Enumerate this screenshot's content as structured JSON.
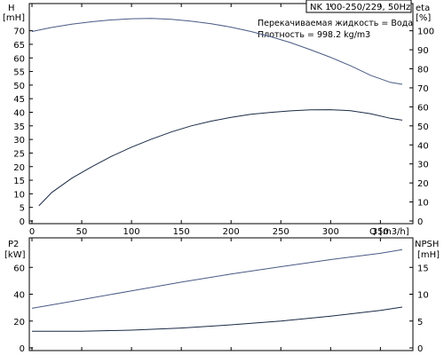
{
  "chart_data": [
    {
      "type": "line",
      "title": "NK 100-250/229, 50Hz",
      "info": [
        "Перекачиваемая жидкость = Вода",
        "Плотность = 998.2 kg/m3"
      ],
      "xlabel": "Q  [m3/h]",
      "xlim": [
        0,
        380
      ],
      "xticks": [
        0,
        50,
        100,
        150,
        200,
        250,
        300,
        350
      ],
      "left_axis": {
        "label_top": "H",
        "label_unit": "[mH]",
        "ylim": [
          0,
          80
        ],
        "ticks": [
          0,
          5,
          10,
          15,
          20,
          25,
          30,
          35,
          40,
          45,
          50,
          55,
          60,
          65,
          70
        ]
      },
      "right_axis": {
        "label_top": "eta",
        "label_unit": "[%]",
        "ylim": [
          0,
          114.3
        ],
        "ticks": [
          0,
          10,
          20,
          30,
          40,
          50,
          60,
          70,
          80,
          90,
          100
        ]
      },
      "grid": false,
      "series": [
        {
          "axis": "left",
          "color": "#4a5a85",
          "x": [
            0,
            20,
            40,
            60,
            80,
            100,
            120,
            140,
            160,
            180,
            200,
            220,
            240,
            260,
            280,
            300,
            320,
            340,
            360,
            372
          ],
          "values": [
            69.7,
            71.2,
            72.4,
            73.3,
            74.0,
            74.4,
            74.5,
            74.2,
            73.5,
            72.6,
            71.3,
            69.7,
            67.8,
            65.6,
            63.0,
            60.2,
            57.1,
            53.6,
            51.0,
            50.3
          ]
        },
        {
          "axis": "right",
          "color": "#1a2a45",
          "x": [
            7,
            20,
            40,
            60,
            80,
            100,
            120,
            140,
            160,
            180,
            200,
            220,
            240,
            260,
            280,
            300,
            320,
            340,
            360,
            372
          ],
          "values": [
            8,
            15,
            22.5,
            28.5,
            34,
            38.8,
            43,
            46.8,
            50,
            52.5,
            54.5,
            56.1,
            57.1,
            57.9,
            58.4,
            58.5,
            58,
            56.4,
            54,
            53
          ]
        }
      ]
    },
    {
      "type": "line",
      "xlim": [
        0,
        380
      ],
      "xticks": [
        0,
        50,
        100,
        150,
        200,
        250,
        300,
        350
      ],
      "left_axis": {
        "label_top": "P2",
        "label_unit": "[kW]",
        "ylim": [
          0,
          82
        ],
        "ticks": [
          0,
          20,
          40,
          60
        ]
      },
      "right_axis": {
        "label_top": "NPSH",
        "label_unit": "[mH]",
        "ylim": [
          0,
          20.5
        ],
        "ticks": [
          0,
          5,
          10,
          15
        ]
      },
      "grid": false,
      "series": [
        {
          "axis": "left",
          "color": "#4a5a85",
          "x": [
            0,
            50,
            100,
            150,
            200,
            250,
            300,
            350,
            372
          ],
          "values": [
            29.5,
            36,
            42.5,
            49,
            55,
            60.5,
            65.8,
            70.5,
            73.2
          ]
        },
        {
          "axis": "right",
          "color": "#1a2a45",
          "x": [
            0,
            50,
            100,
            150,
            200,
            250,
            300,
            350,
            372
          ],
          "values": [
            3.1,
            3.1,
            3.3,
            3.7,
            4.3,
            5.0,
            5.9,
            7.0,
            7.6
          ]
        }
      ]
    }
  ]
}
